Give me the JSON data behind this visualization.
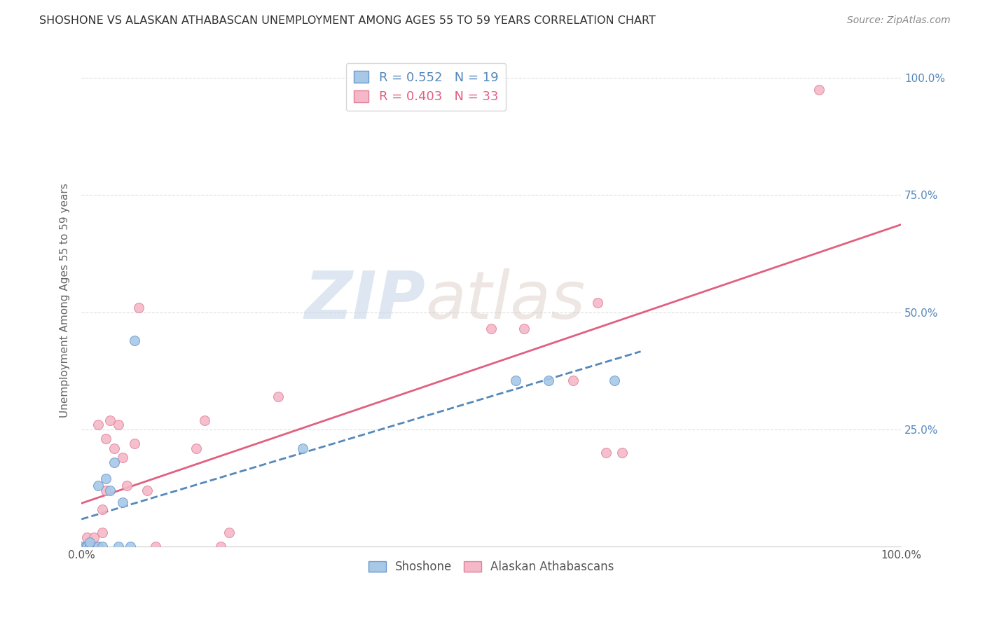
{
  "title": "SHOSHONE VS ALASKAN ATHABASCAN UNEMPLOYMENT AMONG AGES 55 TO 59 YEARS CORRELATION CHART",
  "source": "Source: ZipAtlas.com",
  "ylabel": "Unemployment Among Ages 55 to 59 years",
  "xlim": [
    0,
    1.0
  ],
  "ylim": [
    0,
    1.05
  ],
  "background_color": "#ffffff",
  "grid_color": "#dddddd",
  "watermark_zip": "ZIP",
  "watermark_atlas": "atlas",
  "shoshone_color": "#a8c8e8",
  "shoshone_edge_color": "#6699cc",
  "athabascan_color": "#f4b8c8",
  "athabascan_edge_color": "#e08098",
  "shoshone_R": 0.552,
  "shoshone_N": 19,
  "athabascan_R": 0.403,
  "athabascan_N": 33,
  "shoshone_x": [
    0.0,
    0.005,
    0.007,
    0.01,
    0.01,
    0.02,
    0.02,
    0.025,
    0.03,
    0.035,
    0.04,
    0.045,
    0.05,
    0.06,
    0.065,
    0.27,
    0.53,
    0.57,
    0.65
  ],
  "shoshone_y": [
    0.0,
    0.0,
    0.0,
    0.0,
    0.01,
    0.0,
    0.13,
    0.0,
    0.145,
    0.12,
    0.18,
    0.0,
    0.095,
    0.0,
    0.44,
    0.21,
    0.355,
    0.355,
    0.355
  ],
  "athabascan_x": [
    0.005,
    0.007,
    0.01,
    0.015,
    0.015,
    0.015,
    0.02,
    0.02,
    0.025,
    0.025,
    0.03,
    0.03,
    0.035,
    0.04,
    0.045,
    0.05,
    0.055,
    0.065,
    0.07,
    0.08,
    0.09,
    0.14,
    0.15,
    0.17,
    0.18,
    0.24,
    0.5,
    0.54,
    0.6,
    0.63,
    0.64,
    0.66,
    0.9
  ],
  "athabascan_y": [
    0.0,
    0.02,
    0.0,
    0.0,
    0.0,
    0.02,
    0.26,
    0.0,
    0.03,
    0.08,
    0.12,
    0.23,
    0.27,
    0.21,
    0.26,
    0.19,
    0.13,
    0.22,
    0.51,
    0.12,
    0.0,
    0.21,
    0.27,
    0.0,
    0.03,
    0.32,
    0.465,
    0.465,
    0.355,
    0.52,
    0.2,
    0.2,
    0.975
  ],
  "shoshone_line_color": "#5588bb",
  "shoshone_line_style": "--",
  "athabascan_line_color": "#e06080",
  "athabascan_line_style": "-",
  "legend_fontsize": 13,
  "title_fontsize": 11.5,
  "axis_label_fontsize": 11,
  "tick_fontsize": 11,
  "source_fontsize": 10,
  "marker_size": 100
}
